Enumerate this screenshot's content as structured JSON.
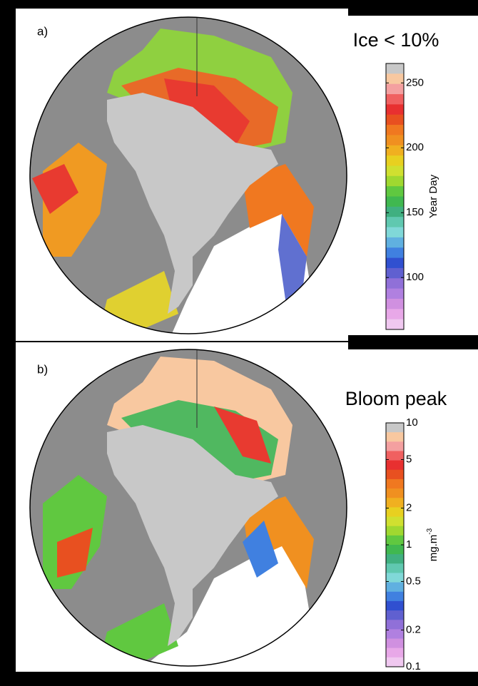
{
  "panels": [
    {
      "label": "a)",
      "title": "Ice < 10%",
      "colorbar": {
        "label": "Year Day",
        "scale": "linear",
        "lim": [
          60,
          265
        ],
        "ticks": [
          100,
          150,
          200,
          250
        ],
        "colors": [
          "#c8c8c8",
          "#f8c8a0",
          "#f4a0a0",
          "#f06060",
          "#e83030",
          "#e85020",
          "#f07820",
          "#f09020",
          "#f0b020",
          "#e8d020",
          "#d0e030",
          "#a0d830",
          "#60c840",
          "#40b850",
          "#40b080",
          "#60c8b0",
          "#80d8d8",
          "#60b0e0",
          "#4080e0",
          "#3050d0",
          "#6060d0",
          "#9070d8",
          "#b080e0",
          "#d090e0",
          "#e8a8e8",
          "#f0c8f0"
        ]
      }
    },
    {
      "label": "b)",
      "title": "Bloom peak",
      "colorbar": {
        "label": {
          "base": "mg.m",
          "sup": "-3"
        },
        "scale": "log",
        "lim": [
          0.1,
          10
        ],
        "ticks": [
          0.1,
          0.2,
          0.5,
          1,
          2,
          5,
          10
        ],
        "colors": [
          "#c8c8c8",
          "#f8c8a0",
          "#f4a0a0",
          "#f06060",
          "#e83030",
          "#e85020",
          "#f07820",
          "#f09020",
          "#f0b020",
          "#e8d020",
          "#d0e030",
          "#a0d830",
          "#60c840",
          "#40b850",
          "#40b080",
          "#60c8b0",
          "#80d8d8",
          "#60b0e0",
          "#4080e0",
          "#3050d0",
          "#6060d0",
          "#9070d8",
          "#b080e0",
          "#d090e0",
          "#e8a8e8",
          "#f0c8f0"
        ]
      }
    }
  ]
}
